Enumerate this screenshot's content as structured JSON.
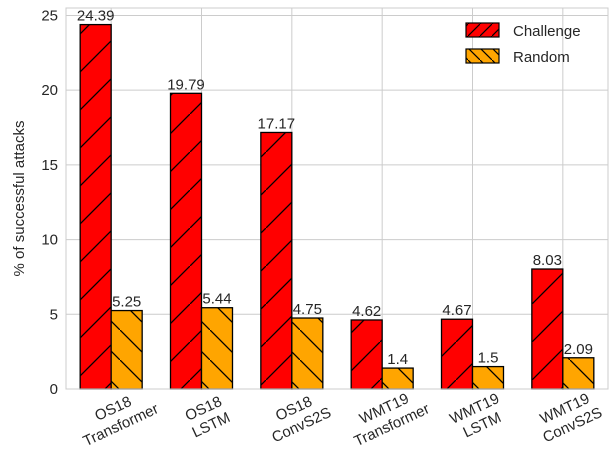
{
  "chart_data": {
    "type": "bar",
    "categories": [
      [
        "OS18",
        "Transformer"
      ],
      [
        "OS18",
        "LSTM"
      ],
      [
        "OS18",
        "ConvS2S"
      ],
      [
        "WMT19",
        "Transformer"
      ],
      [
        "WMT19",
        "LSTM"
      ],
      [
        "WMT19",
        "ConvS2S"
      ]
    ],
    "series": [
      {
        "name": "Challenge",
        "values": [
          24.39,
          19.79,
          17.17,
          4.62,
          4.67,
          8.03
        ],
        "labels": [
          "24.39",
          "19.79",
          "17.17",
          "4.62",
          "4.67",
          "8.03"
        ],
        "color": "#ff0000",
        "hatch": "forward-diagonal"
      },
      {
        "name": "Random",
        "values": [
          5.25,
          5.44,
          4.75,
          1.4,
          1.5,
          2.09
        ],
        "labels": [
          "5.25",
          "5.44",
          "4.75",
          "1.4",
          "1.5",
          "2.09"
        ],
        "color": "#ffa500",
        "hatch": "back-diagonal"
      }
    ],
    "ylabel": "% of successful attacks",
    "xlabel": "",
    "ylim": [
      0,
      25.5
    ],
    "yticks": [
      0,
      5,
      10,
      15,
      20,
      25
    ],
    "grid": true,
    "legend": "top-right",
    "x_tick_rotation_deg": -25
  }
}
